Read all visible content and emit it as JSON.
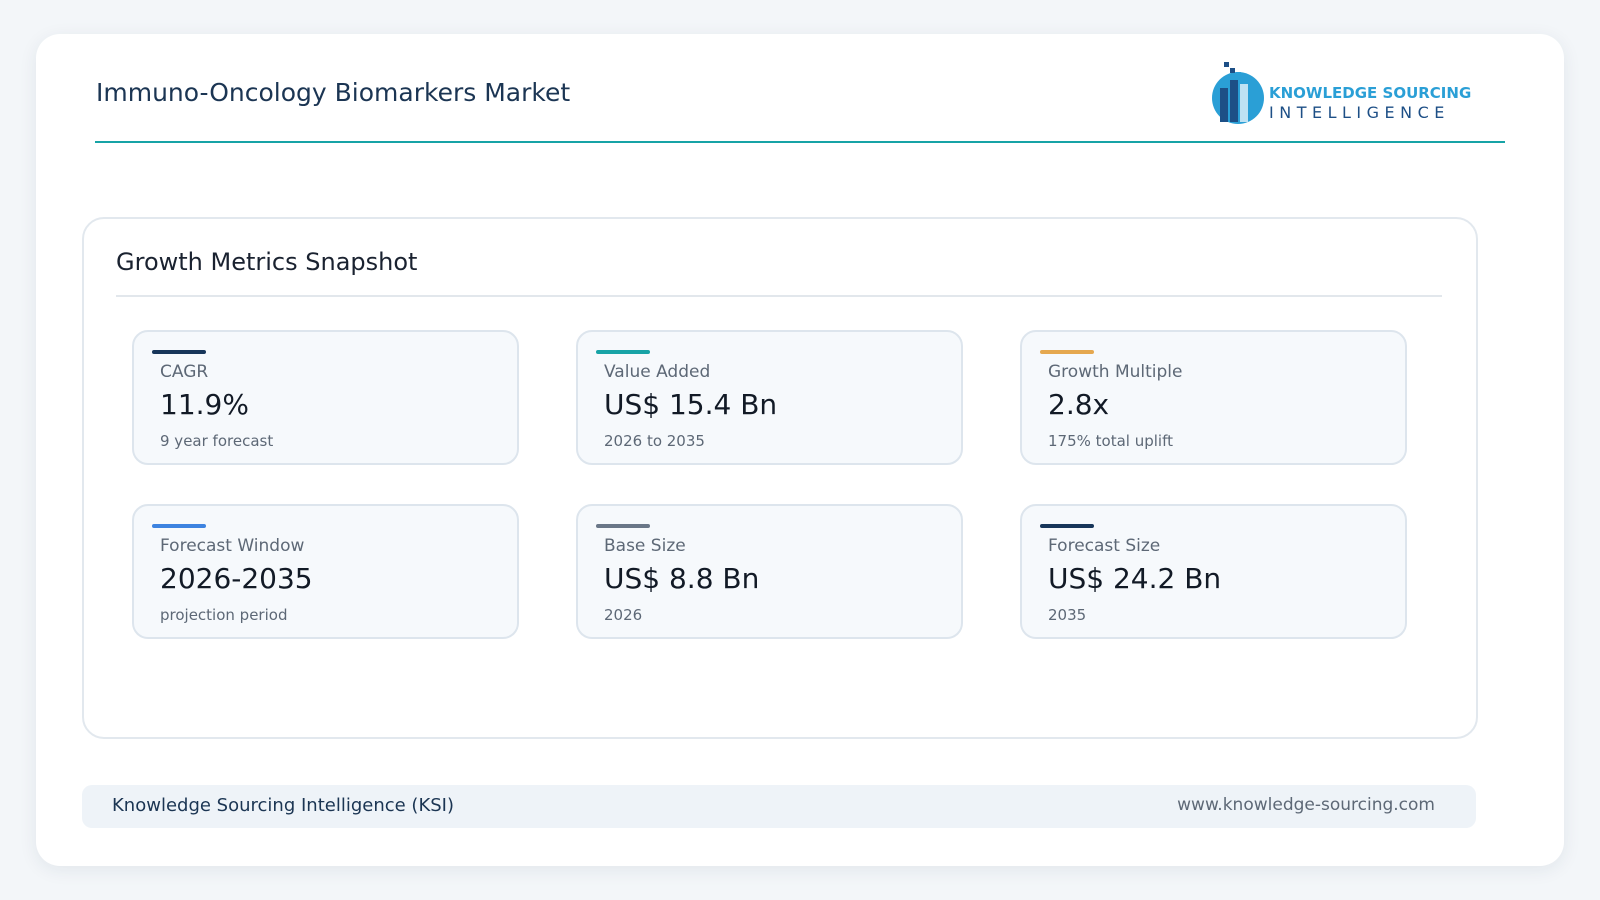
{
  "header": {
    "title": "Immuno-Oncology Biomarkers Market",
    "logo": {
      "line1": "KNOWLEDGE SOURCING",
      "line2": "INTELLIGENCE"
    }
  },
  "section": {
    "title": "Growth Metrics Snapshot",
    "cards": [
      {
        "label": "CAGR",
        "value": "11.9%",
        "note": "9 year forecast",
        "color": "#17365a"
      },
      {
        "label": "Value Added",
        "value": "US$ 15.4 Bn",
        "note": "2026 to 2035",
        "color": "#17a3a6"
      },
      {
        "label": "Growth Multiple",
        "value": "2.8x",
        "note": "175% total uplift",
        "color": "#e5a84f"
      },
      {
        "label": "Forecast Window",
        "value": "2026-2035",
        "note": "projection period",
        "color": "#3d83e0"
      },
      {
        "label": "Base Size",
        "value": "US$ 8.8 Bn",
        "note": "2026",
        "color": "#6a7788"
      },
      {
        "label": "Forecast Size",
        "value": "US$ 24.2 Bn",
        "note": "2035",
        "color": "#17365a"
      }
    ]
  },
  "footer": {
    "left": "Knowledge Sourcing Intelligence (KSI)",
    "right": "www.knowledge-sourcing.com"
  }
}
